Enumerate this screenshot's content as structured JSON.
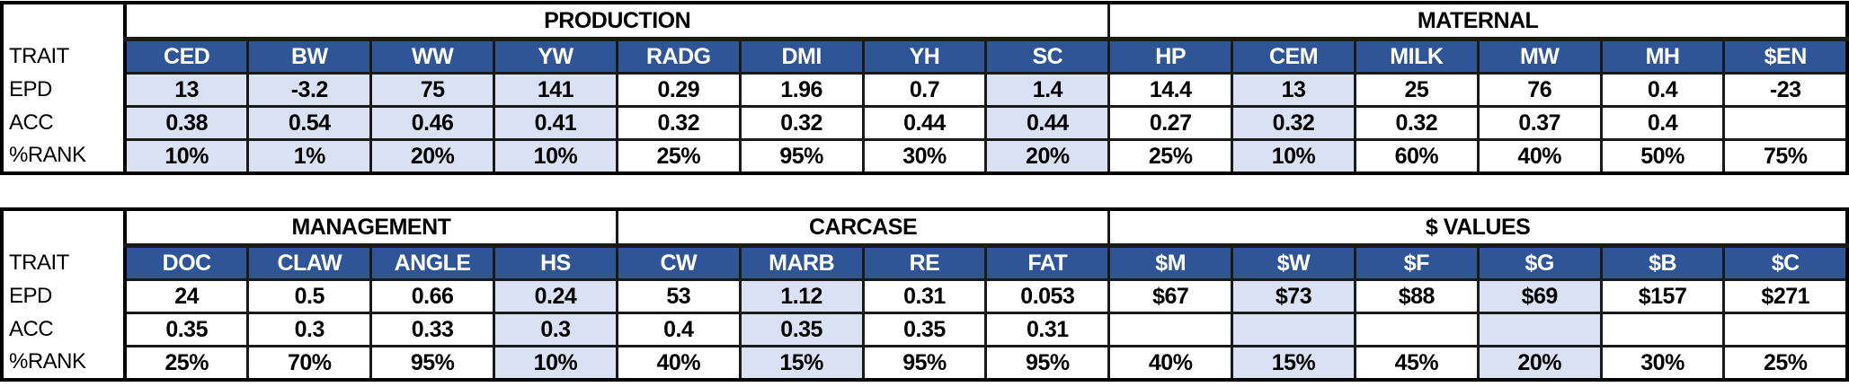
{
  "colors": {
    "header_bg": "#2F5597",
    "header_text": "#FFFFFF",
    "highlight": "#D9E1F2",
    "border": "#000000"
  },
  "row_labels": {
    "trait": "TRAIT",
    "epd": "EPD",
    "acc": "ACC",
    "rank": "%RANK"
  },
  "tables": [
    {
      "groups": [
        {
          "title": "PRODUCTION",
          "span": 8
        },
        {
          "title": "MATERNAL",
          "span": 6
        }
      ],
      "traits": [
        {
          "name": "CED",
          "epd": "13",
          "acc": "0.38",
          "rank": "10%",
          "highlighted": true
        },
        {
          "name": "BW",
          "epd": "-3.2",
          "acc": "0.54",
          "rank": "1%",
          "highlighted": true
        },
        {
          "name": "WW",
          "epd": "75",
          "acc": "0.46",
          "rank": "20%",
          "highlighted": true
        },
        {
          "name": "YW",
          "epd": "141",
          "acc": "0.41",
          "rank": "10%",
          "highlighted": true
        },
        {
          "name": "RADG",
          "epd": "0.29",
          "acc": "0.32",
          "rank": "25%",
          "highlighted": false
        },
        {
          "name": "DMI",
          "epd": "1.96",
          "acc": "0.32",
          "rank": "95%",
          "highlighted": false
        },
        {
          "name": "YH",
          "epd": "0.7",
          "acc": "0.44",
          "rank": "30%",
          "highlighted": false
        },
        {
          "name": "SC",
          "epd": "1.4",
          "acc": "0.44",
          "rank": "20%",
          "highlighted": true
        },
        {
          "name": "HP",
          "epd": "14.4",
          "acc": "0.27",
          "rank": "25%",
          "highlighted": false
        },
        {
          "name": "CEM",
          "epd": "13",
          "acc": "0.32",
          "rank": "10%",
          "highlighted": true
        },
        {
          "name": "MILK",
          "epd": "25",
          "acc": "0.32",
          "rank": "60%",
          "highlighted": false
        },
        {
          "name": "MW",
          "epd": "76",
          "acc": "0.37",
          "rank": "40%",
          "highlighted": false
        },
        {
          "name": "MH",
          "epd": "0.4",
          "acc": "0.4",
          "rank": "50%",
          "highlighted": false
        },
        {
          "name": "$EN",
          "epd": "-23",
          "acc": "",
          "rank": "75%",
          "highlighted": false
        }
      ]
    },
    {
      "groups": [
        {
          "title": "MANAGEMENT",
          "span": 4
        },
        {
          "title": "CARCASE",
          "span": 4
        },
        {
          "title": "$ VALUES",
          "span": 6
        }
      ],
      "traits": [
        {
          "name": "DOC",
          "epd": "24",
          "acc": "0.35",
          "rank": "25%",
          "highlighted": false
        },
        {
          "name": "CLAW",
          "epd": "0.5",
          "acc": "0.3",
          "rank": "70%",
          "highlighted": false
        },
        {
          "name": "ANGLE",
          "epd": "0.66",
          "acc": "0.33",
          "rank": "95%",
          "highlighted": false
        },
        {
          "name": "HS",
          "epd": "0.24",
          "acc": "0.3",
          "rank": "10%",
          "highlighted": true
        },
        {
          "name": "CW",
          "epd": "53",
          "acc": "0.4",
          "rank": "40%",
          "highlighted": false
        },
        {
          "name": "MARB",
          "epd": "1.12",
          "acc": "0.35",
          "rank": "15%",
          "highlighted": true
        },
        {
          "name": "RE",
          "epd": "0.31",
          "acc": "0.35",
          "rank": "95%",
          "highlighted": false
        },
        {
          "name": "FAT",
          "epd": "0.053",
          "acc": "0.31",
          "rank": "95%",
          "highlighted": false
        },
        {
          "name": "$M",
          "epd": "$67",
          "acc": "",
          "rank": "40%",
          "highlighted": false
        },
        {
          "name": "$W",
          "epd": "$73",
          "acc": "",
          "rank": "15%",
          "highlighted": true
        },
        {
          "name": "$F",
          "epd": "$88",
          "acc": "",
          "rank": "45%",
          "highlighted": false
        },
        {
          "name": "$G",
          "epd": "$69",
          "acc": "",
          "rank": "20%",
          "highlighted": true
        },
        {
          "name": "$B",
          "epd": "$157",
          "acc": "",
          "rank": "30%",
          "highlighted": false
        },
        {
          "name": "$C",
          "epd": "$271",
          "acc": "",
          "rank": "25%",
          "highlighted": false
        }
      ]
    }
  ]
}
